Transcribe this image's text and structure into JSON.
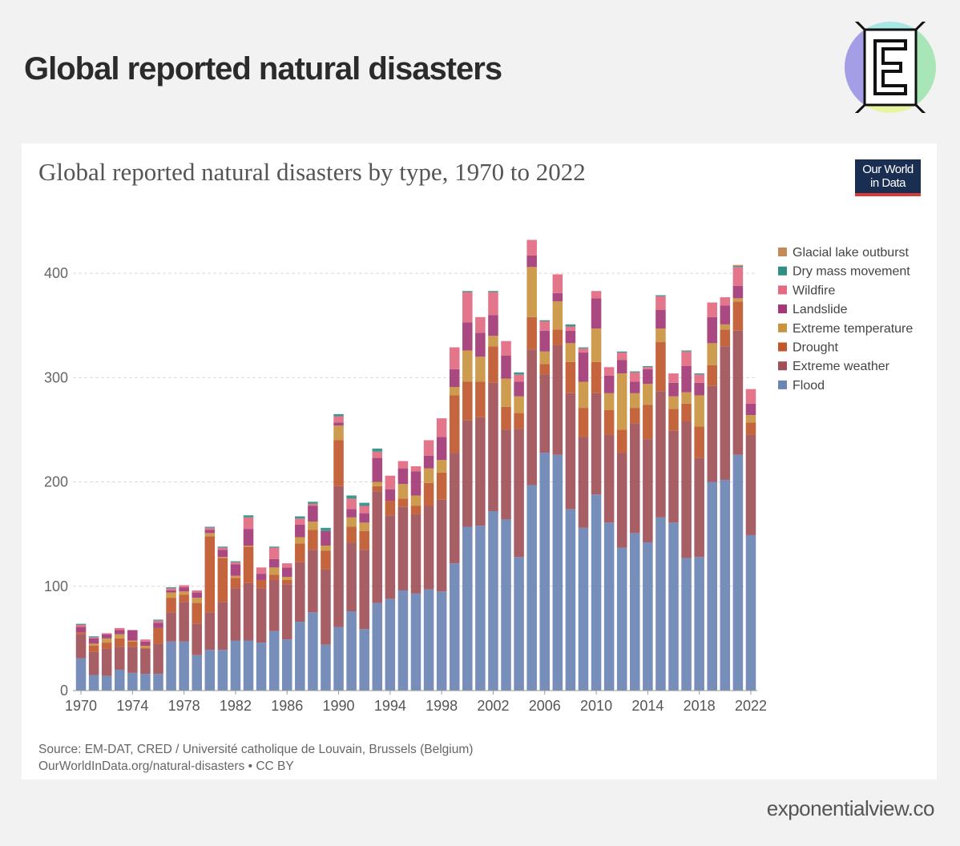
{
  "page": {
    "title": "Global reported natural disasters",
    "brand": "exponentialview.co"
  },
  "owid": {
    "line1": "Our World",
    "line2": "in Data"
  },
  "source": {
    "line1": "Source: EM-DAT, CRED / Université catholique de Louvain, Brussels (Belgium)",
    "line2": "OurWorldInData.org/natural-disasters • CC BY"
  },
  "colors": {
    "logo_purple": "#a49ee6",
    "logo_cyan": "#a7e8e4",
    "logo_green": "#a8e6b8",
    "logo_yellow": "#e6f5a0"
  },
  "chart_data": {
    "type": "bar",
    "stacked": true,
    "title": "Global reported natural disasters by type, 1970 to 2022",
    "xlabel": "",
    "ylabel": "",
    "ylim": [
      0,
      440
    ],
    "yticks": [
      0,
      100,
      200,
      300,
      400
    ],
    "xtick_labels": [
      "1970",
      "1974",
      "1978",
      "1982",
      "1986",
      "1990",
      "1994",
      "1998",
      "2002",
      "2006",
      "2010",
      "2014",
      "2018",
      "2022"
    ],
    "legend_position": "right",
    "categories": [
      "1970",
      "1971",
      "1972",
      "1973",
      "1974",
      "1975",
      "1976",
      "1977",
      "1978",
      "1979",
      "1980",
      "1981",
      "1982",
      "1983",
      "1984",
      "1985",
      "1986",
      "1987",
      "1988",
      "1989",
      "1990",
      "1991",
      "1992",
      "1993",
      "1994",
      "1995",
      "1996",
      "1997",
      "1998",
      "1999",
      "2000",
      "2001",
      "2002",
      "2003",
      "2004",
      "2005",
      "2006",
      "2007",
      "2008",
      "2009",
      "2010",
      "2011",
      "2012",
      "2013",
      "2014",
      "2015",
      "2016",
      "2017",
      "2018",
      "2019",
      "2020",
      "2021",
      "2022"
    ],
    "series": [
      {
        "name": "Flood",
        "color": "#6d84b4",
        "values": [
          31,
          15,
          14,
          20,
          17,
          16,
          16,
          47,
          47,
          34,
          39,
          39,
          48,
          48,
          46,
          57,
          49,
          66,
          75,
          44,
          61,
          76,
          59,
          84,
          88,
          96,
          93,
          97,
          95,
          122,
          157,
          158,
          172,
          164,
          128,
          197,
          228,
          226,
          174,
          156,
          188,
          161,
          137,
          151,
          142,
          166,
          161,
          127,
          128,
          200,
          202,
          226,
          149
        ]
      },
      {
        "name": "Extreme weather",
        "color": "#a05058",
        "values": [
          23,
          22,
          26,
          22,
          25,
          24,
          29,
          28,
          38,
          30,
          36,
          46,
          50,
          55,
          52,
          49,
          53,
          57,
          60,
          72,
          135,
          66,
          76,
          107,
          80,
          80,
          76,
          80,
          88,
          106,
          102,
          104,
          123,
          86,
          123,
          130,
          75,
          105,
          111,
          87,
          97,
          84,
          91,
          105,
          99,
          121,
          88,
          131,
          95,
          92,
          128,
          119,
          96
        ]
      },
      {
        "name": "Drought",
        "color": "#c0582c",
        "values": [
          2,
          6,
          6,
          8,
          5,
          1,
          15,
          14,
          7,
          20,
          73,
          42,
          10,
          35,
          8,
          5,
          4,
          18,
          19,
          18,
          44,
          15,
          18,
          5,
          14,
          8,
          8,
          22,
          26,
          55,
          37,
          34,
          35,
          22,
          15,
          31,
          10,
          15,
          30,
          28,
          30,
          24,
          22,
          15,
          33,
          47,
          21,
          17,
          30,
          20,
          16,
          28,
          12
        ]
      },
      {
        "name": "Extreme temperature",
        "color": "#c99440",
        "values": [
          0,
          2,
          4,
          4,
          1,
          2,
          0,
          5,
          3,
          5,
          3,
          1,
          2,
          1,
          0,
          7,
          3,
          6,
          8,
          5,
          14,
          9,
          8,
          4,
          0,
          14,
          10,
          14,
          12,
          8,
          30,
          24,
          10,
          27,
          16,
          48,
          12,
          27,
          18,
          25,
          32,
          16,
          54,
          14,
          20,
          13,
          12,
          11,
          30,
          21,
          5,
          3,
          7
        ]
      },
      {
        "name": "Landslide",
        "color": "#a23876",
        "values": [
          5,
          5,
          4,
          4,
          10,
          4,
          5,
          2,
          4,
          5,
          3,
          7,
          11,
          16,
          6,
          8,
          9,
          12,
          15,
          14,
          3,
          8,
          9,
          23,
          11,
          15,
          23,
          12,
          22,
          17,
          27,
          23,
          20,
          22,
          14,
          11,
          20,
          8,
          12,
          28,
          29,
          17,
          13,
          11,
          14,
          18,
          13,
          25,
          12,
          25,
          18,
          12,
          11
        ]
      },
      {
        "name": "Wildfire",
        "color": "#e26a82",
        "values": [
          2,
          1,
          1,
          2,
          0,
          2,
          2,
          2,
          2,
          2,
          2,
          2,
          2,
          11,
          6,
          11,
          4,
          6,
          2,
          0,
          6,
          10,
          7,
          6,
          13,
          7,
          5,
          15,
          18,
          21,
          29,
          15,
          22,
          14,
          7,
          15,
          9,
          18,
          4,
          4,
          7,
          8,
          7,
          9,
          2,
          13,
          9,
          14,
          8,
          14,
          8,
          18,
          14
        ]
      },
      {
        "name": "Dry mass movement",
        "color": "#2f8f83",
        "values": [
          1,
          1,
          0,
          0,
          0,
          0,
          1,
          1,
          0,
          0,
          1,
          1,
          1,
          2,
          0,
          1,
          0,
          2,
          2,
          3,
          2,
          3,
          3,
          3,
          0,
          0,
          0,
          0,
          0,
          0,
          1,
          0,
          1,
          0,
          2,
          0,
          1,
          0,
          2,
          1,
          0,
          0,
          1,
          1,
          1,
          1,
          0,
          1,
          1,
          0,
          0,
          1,
          0
        ]
      },
      {
        "name": "Glacial lake outburst",
        "color": "#c28a56",
        "values": [
          0,
          0,
          0,
          0,
          0,
          0,
          0,
          0,
          0,
          0,
          0,
          0,
          0,
          0,
          0,
          0,
          0,
          0,
          0,
          0,
          0,
          0,
          0,
          0,
          0,
          0,
          0,
          0,
          0,
          0,
          0,
          0,
          0,
          0,
          0,
          0,
          0,
          0,
          0,
          0,
          0,
          0,
          0,
          0,
          0,
          0,
          0,
          0,
          0,
          0,
          0,
          1,
          0
        ]
      }
    ]
  }
}
